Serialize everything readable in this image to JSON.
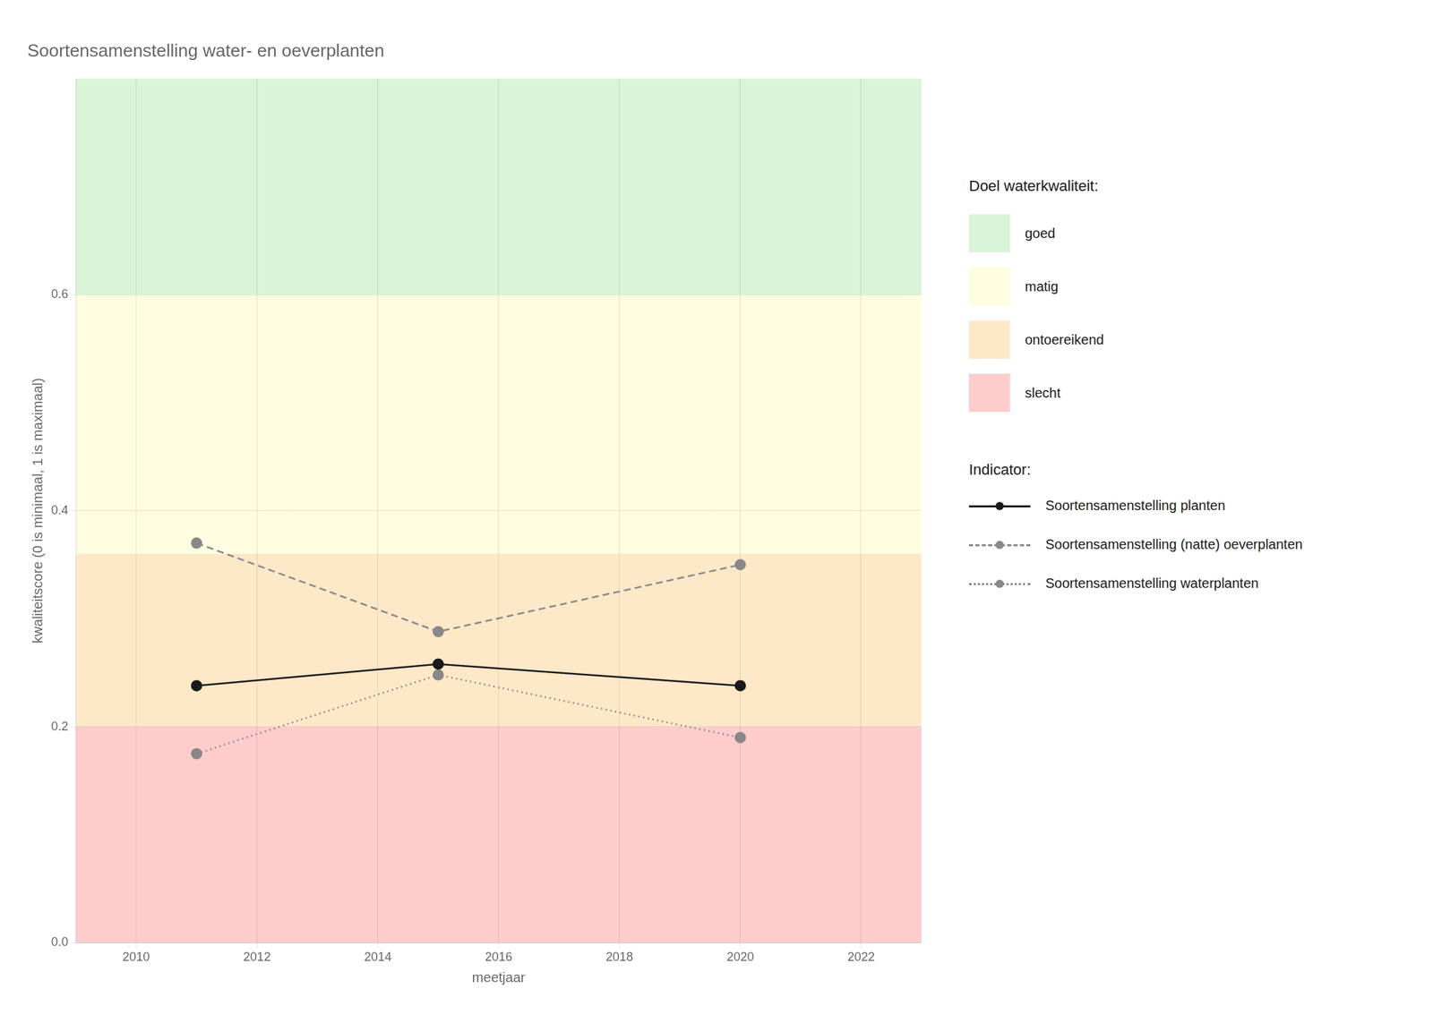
{
  "chart_data": {
    "type": "line",
    "title": "Soortensamenstelling water- en oeverplanten",
    "x_label": "meetjaar",
    "y_label": "kwaliteitscore (0 is minimaal, 1 is maximaal)",
    "x": [
      2011,
      2015,
      2020
    ],
    "xlim": [
      2009,
      2023
    ],
    "xticks": [
      2010,
      2012,
      2014,
      2016,
      2018,
      2020,
      2022
    ],
    "ylim": [
      0.0,
      0.8
    ],
    "yticks": [
      {
        "value": 0,
        "label": "0.0"
      },
      0.2,
      0.4,
      0.6
    ],
    "grid": true,
    "zones_title": "Doel waterkwaliteit:",
    "zones": [
      {
        "ymin": 0.6,
        "ymax": 0.8,
        "color": "#d8f5d8",
        "label": "goed"
      },
      {
        "ymin": 0.36,
        "ymax": 0.6,
        "color": "#fdfde0",
        "label": "matig"
      },
      {
        "ymin": 0.2,
        "ymax": 0.36,
        "color": "#fde8c8",
        "label": "ontoereikend"
      },
      {
        "ymin": 0.0,
        "ymax": 0.2,
        "color": "#ffcccc",
        "label": "slecht"
      }
    ],
    "series_title": "Indicator:",
    "series": [
      {
        "name": "Soortensamenstelling planten",
        "color": "#1a1a1a",
        "line_style": "solid",
        "marker": "circle",
        "values": [
          0.238,
          0.258,
          0.238
        ]
      },
      {
        "name": "Soortensamenstelling (natte) oeverplanten",
        "color": "#888888",
        "line_style": "dashed",
        "marker": "circle",
        "values": [
          0.37,
          0.288,
          0.35
        ]
      },
      {
        "name": "Soortensamenstelling waterplanten",
        "color": "#888888",
        "line_style": "dotted",
        "marker": "circle",
        "values": [
          0.175,
          0.248,
          0.19
        ]
      }
    ]
  }
}
